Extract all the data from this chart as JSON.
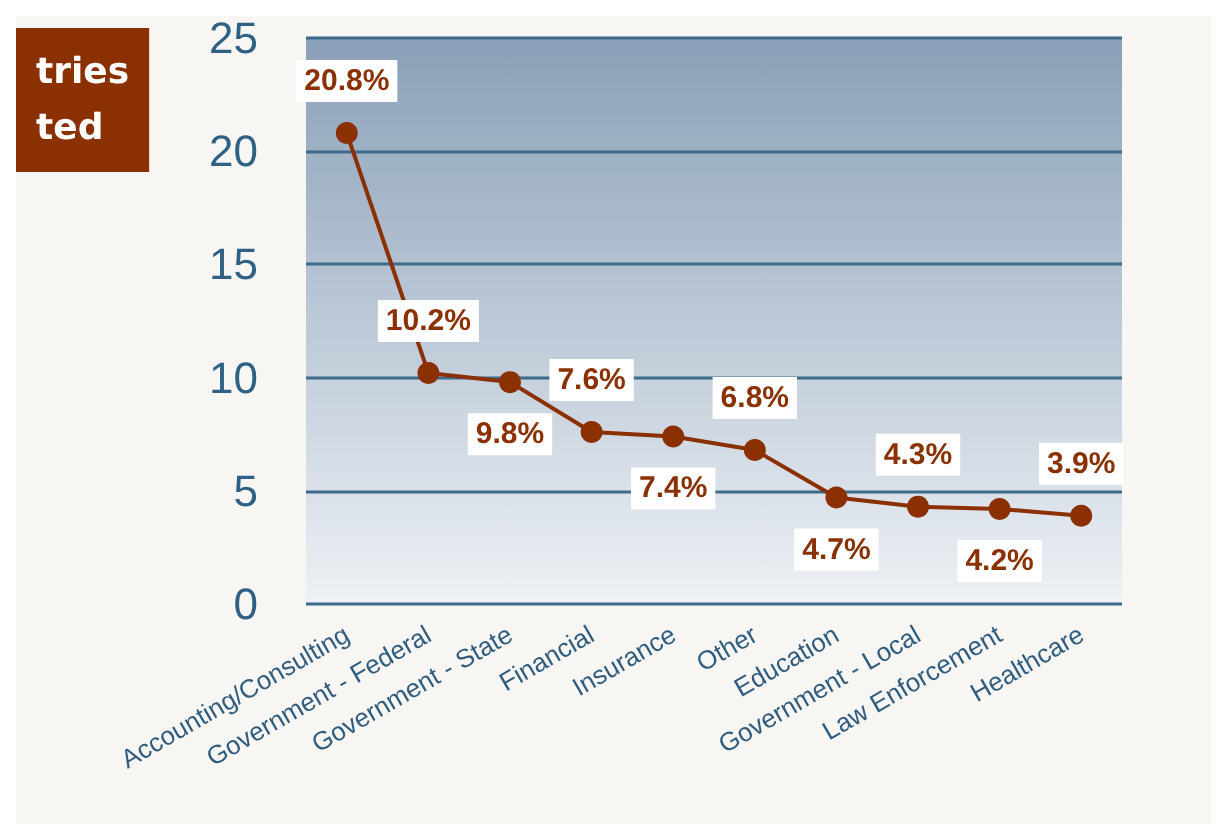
{
  "chart_data": {
    "type": "line",
    "title": "tries\nted",
    "categories": [
      "Accounting/Consulting",
      "Government - Federal",
      "Government - State",
      "Financial",
      "Insurance",
      "Other",
      "Education",
      "Government - Local",
      "Law Enforcement",
      "Healthcare"
    ],
    "series": [
      {
        "color": "#8b3000",
        "values": [
          20.8,
          10.2,
          9.8,
          7.6,
          7.4,
          6.8,
          4.7,
          4.3,
          4.2,
          3.9
        ],
        "value_labels": [
          "20.8%",
          "10.2%",
          "9.8%",
          "7.6%",
          "7.4%",
          "6.8%",
          "4.7%",
          "4.3%",
          "4.2%",
          "3.9%"
        ]
      }
    ],
    "ylim": [
      0,
      25
    ],
    "yticks": [
      0,
      5,
      10,
      15,
      20,
      25
    ],
    "grid": "y",
    "marker": "circle",
    "line_style": "solid"
  }
}
